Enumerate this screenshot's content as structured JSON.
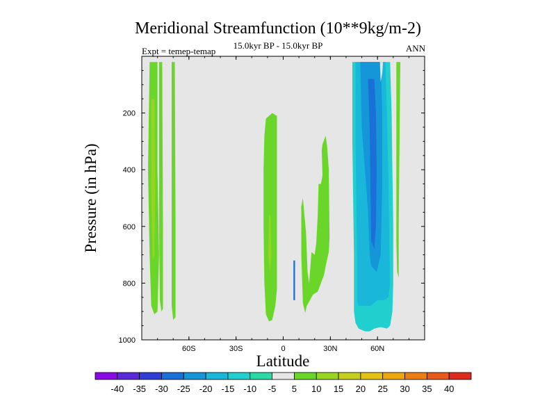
{
  "chart_data": {
    "type": "contour",
    "title": "Meridional Streamfunction (10**9kg/m-2)",
    "subtitle": "15.0kyr BP - 15.0kyr BP",
    "left_label": "Expt = temep-temap",
    "right_label": "ANN",
    "xlabel": "Latitude",
    "ylabel": "Pressure (in hPa)",
    "xlim": [
      -90,
      90
    ],
    "ylim": [
      1000,
      0
    ],
    "x_ticks": [
      {
        "value": -60,
        "label": "60S"
      },
      {
        "value": -30,
        "label": "30S"
      },
      {
        "value": 0,
        "label": "0"
      },
      {
        "value": 30,
        "label": "30N"
      },
      {
        "value": 60,
        "label": "60N"
      }
    ],
    "y_ticks": [
      {
        "value": 200,
        "label": "200"
      },
      {
        "value": 400,
        "label": "400"
      },
      {
        "value": 600,
        "label": "600"
      },
      {
        "value": 800,
        "label": "800"
      },
      {
        "value": 1000,
        "label": "1000"
      }
    ],
    "background_color": "#e6e6e6",
    "levels": [
      "-40",
      "-35",
      "-30",
      "-25",
      "-20",
      "-15",
      "-10",
      "-5",
      "5",
      "10",
      "15",
      "20",
      "25",
      "30",
      "35",
      "40"
    ],
    "level_colors": [
      "#8a0ae6",
      "#5a2ad8",
      "#2f3fd6",
      "#1a6fd8",
      "#1596d9",
      "#19b7d9",
      "#21cfcf",
      "#2ad9a3",
      "#e6e6e6",
      "#6bd62a",
      "#97d523",
      "#c6cf1d",
      "#e4c212",
      "#eea60f",
      "#ec7e14",
      "#e85a1a",
      "#de2a1a"
    ],
    "regions": [
      {
        "name": "sh-polar-band-1",
        "color": "#6bd62a",
        "points": [
          [
            -85,
            20
          ],
          [
            -80,
            20
          ],
          [
            -80,
            400
          ],
          [
            -79,
            700
          ],
          [
            -80,
            900
          ],
          [
            -82,
            910
          ],
          [
            -84,
            880
          ],
          [
            -85,
            700
          ],
          [
            -86,
            400
          ]
        ]
      },
      {
        "name": "sh-polar-core",
        "color": "#97d523",
        "points": [
          [
            -84,
            150
          ],
          [
            -82,
            150
          ],
          [
            -81.5,
            450
          ],
          [
            -82,
            700
          ],
          [
            -83,
            720
          ],
          [
            -84,
            500
          ]
        ]
      },
      {
        "name": "sh-polar-band-2",
        "color": "#6bd62a",
        "points": [
          [
            -79,
            20
          ],
          [
            -77,
            20
          ],
          [
            -76.5,
            600
          ],
          [
            -76.5,
            890
          ],
          [
            -77.5,
            900
          ],
          [
            -78.5,
            860
          ],
          [
            -79,
            600
          ]
        ]
      },
      {
        "name": "sh-polar-band-3",
        "color": "#6bd62a",
        "points": [
          [
            -71,
            20
          ],
          [
            -69,
            20
          ],
          [
            -68.5,
            600
          ],
          [
            -68.5,
            920
          ],
          [
            -70,
            930
          ],
          [
            -71,
            880
          ],
          [
            -71,
            600
          ]
        ]
      },
      {
        "name": "tropical-cell",
        "color": "#6bd62a",
        "points": [
          [
            -11,
            220
          ],
          [
            -7,
            200
          ],
          [
            -4,
            210
          ],
          [
            -4,
            400
          ],
          [
            -4,
            620
          ],
          [
            -4,
            820
          ],
          [
            -5,
            880
          ],
          [
            -7,
            930
          ],
          [
            -9,
            935
          ],
          [
            -11,
            910
          ],
          [
            -12,
            800
          ],
          [
            -12.5,
            600
          ],
          [
            -12.5,
            400
          ],
          [
            -12,
            280
          ]
        ]
      },
      {
        "name": "tropical-core",
        "color": "#97d523",
        "points": [
          [
            -9,
            560
          ],
          [
            -8,
            560
          ],
          [
            -7.5,
            700
          ],
          [
            -8.5,
            760
          ],
          [
            -9.5,
            700
          ]
        ]
      },
      {
        "name": "tropical-dip",
        "color": "#1a6fd8",
        "points": [
          [
            6.5,
            720
          ],
          [
            7.5,
            720
          ],
          [
            7.5,
            860
          ],
          [
            6.5,
            860
          ]
        ]
      },
      {
        "name": "nh-subtropical-cell",
        "color": "#6bd62a",
        "points": [
          [
            11.5,
            530
          ],
          [
            12.5,
            500
          ],
          [
            13.5,
            560
          ],
          [
            14.5,
            620
          ],
          [
            15.5,
            760
          ],
          [
            16.5,
            800
          ],
          [
            18,
            690
          ],
          [
            20,
            700
          ],
          [
            21,
            660
          ],
          [
            22,
            560
          ],
          [
            22.5,
            450
          ],
          [
            24,
            450
          ],
          [
            25,
            420
          ],
          [
            24.5,
            330
          ],
          [
            25,
            310
          ],
          [
            27,
            280
          ],
          [
            28,
            320
          ],
          [
            29,
            400
          ],
          [
            29.5,
            640
          ],
          [
            29,
            690
          ],
          [
            27,
            740
          ],
          [
            26,
            770
          ],
          [
            24,
            800
          ],
          [
            22,
            830
          ],
          [
            19,
            840
          ],
          [
            17,
            860
          ],
          [
            16,
            870
          ],
          [
            15,
            880
          ],
          [
            14,
            905
          ],
          [
            12.5,
            870
          ],
          [
            11.5,
            700
          ]
        ]
      },
      {
        "name": "nh-polar-band",
        "color": "#6bd62a",
        "points": [
          [
            72,
            20
          ],
          [
            74.5,
            20
          ],
          [
            73.5,
            600
          ],
          [
            73.5,
            780
          ],
          [
            72.5,
            760
          ],
          [
            72,
            650
          ],
          [
            72,
            400
          ]
        ]
      },
      {
        "name": "nh-midlat-outer",
        "color": "#21cfcf",
        "points": [
          [
            44,
            20
          ],
          [
            68,
            20
          ],
          [
            69,
            200
          ],
          [
            69.5,
            400
          ],
          [
            70,
            600
          ],
          [
            70,
            800
          ],
          [
            69.5,
            900
          ],
          [
            68,
            950
          ],
          [
            66,
            960
          ],
          [
            62,
            955
          ],
          [
            58,
            960
          ],
          [
            55,
            970
          ],
          [
            52,
            970
          ],
          [
            48,
            960
          ],
          [
            46,
            940
          ],
          [
            45,
            900
          ],
          [
            45,
            700
          ],
          [
            44.5,
            500
          ],
          [
            44,
            300
          ]
        ]
      },
      {
        "name": "nh-midlat-middle",
        "color": "#19b7d9",
        "points": [
          [
            46,
            20
          ],
          [
            65,
            20
          ],
          [
            66,
            200
          ],
          [
            67,
            450
          ],
          [
            67.5,
            650
          ],
          [
            68,
            800
          ],
          [
            67,
            850
          ],
          [
            64,
            860
          ],
          [
            60,
            860
          ],
          [
            56,
            880
          ],
          [
            52,
            880
          ],
          [
            48,
            880
          ],
          [
            47,
            860
          ],
          [
            47,
            700
          ],
          [
            46.5,
            500
          ],
          [
            46,
            300
          ]
        ]
      },
      {
        "name": "nh-midlat-inner",
        "color": "#1596d9",
        "points": [
          [
            49,
            20
          ],
          [
            62,
            20
          ],
          [
            63,
            200
          ],
          [
            63,
            450
          ],
          [
            62,
            700
          ],
          [
            59.5,
            760
          ],
          [
            56,
            740
          ],
          [
            55,
            700
          ],
          [
            54,
            550
          ],
          [
            52,
            400
          ],
          [
            50,
            250
          ]
        ]
      },
      {
        "name": "nh-midlat-core",
        "color": "#1a6fd8",
        "points": [
          [
            54,
            80
          ],
          [
            58,
            80
          ],
          [
            59,
            200
          ],
          [
            59.5,
            400
          ],
          [
            59,
            600
          ],
          [
            58,
            680
          ],
          [
            56,
            650
          ],
          [
            55.5,
            450
          ],
          [
            55,
            250
          ]
        ]
      },
      {
        "name": "nh-midlat-gap",
        "color": "#e6e6e6",
        "points": [
          [
            61.5,
            20
          ],
          [
            63.5,
            20
          ],
          [
            63,
            60
          ],
          [
            62,
            90
          ]
        ]
      }
    ]
  }
}
